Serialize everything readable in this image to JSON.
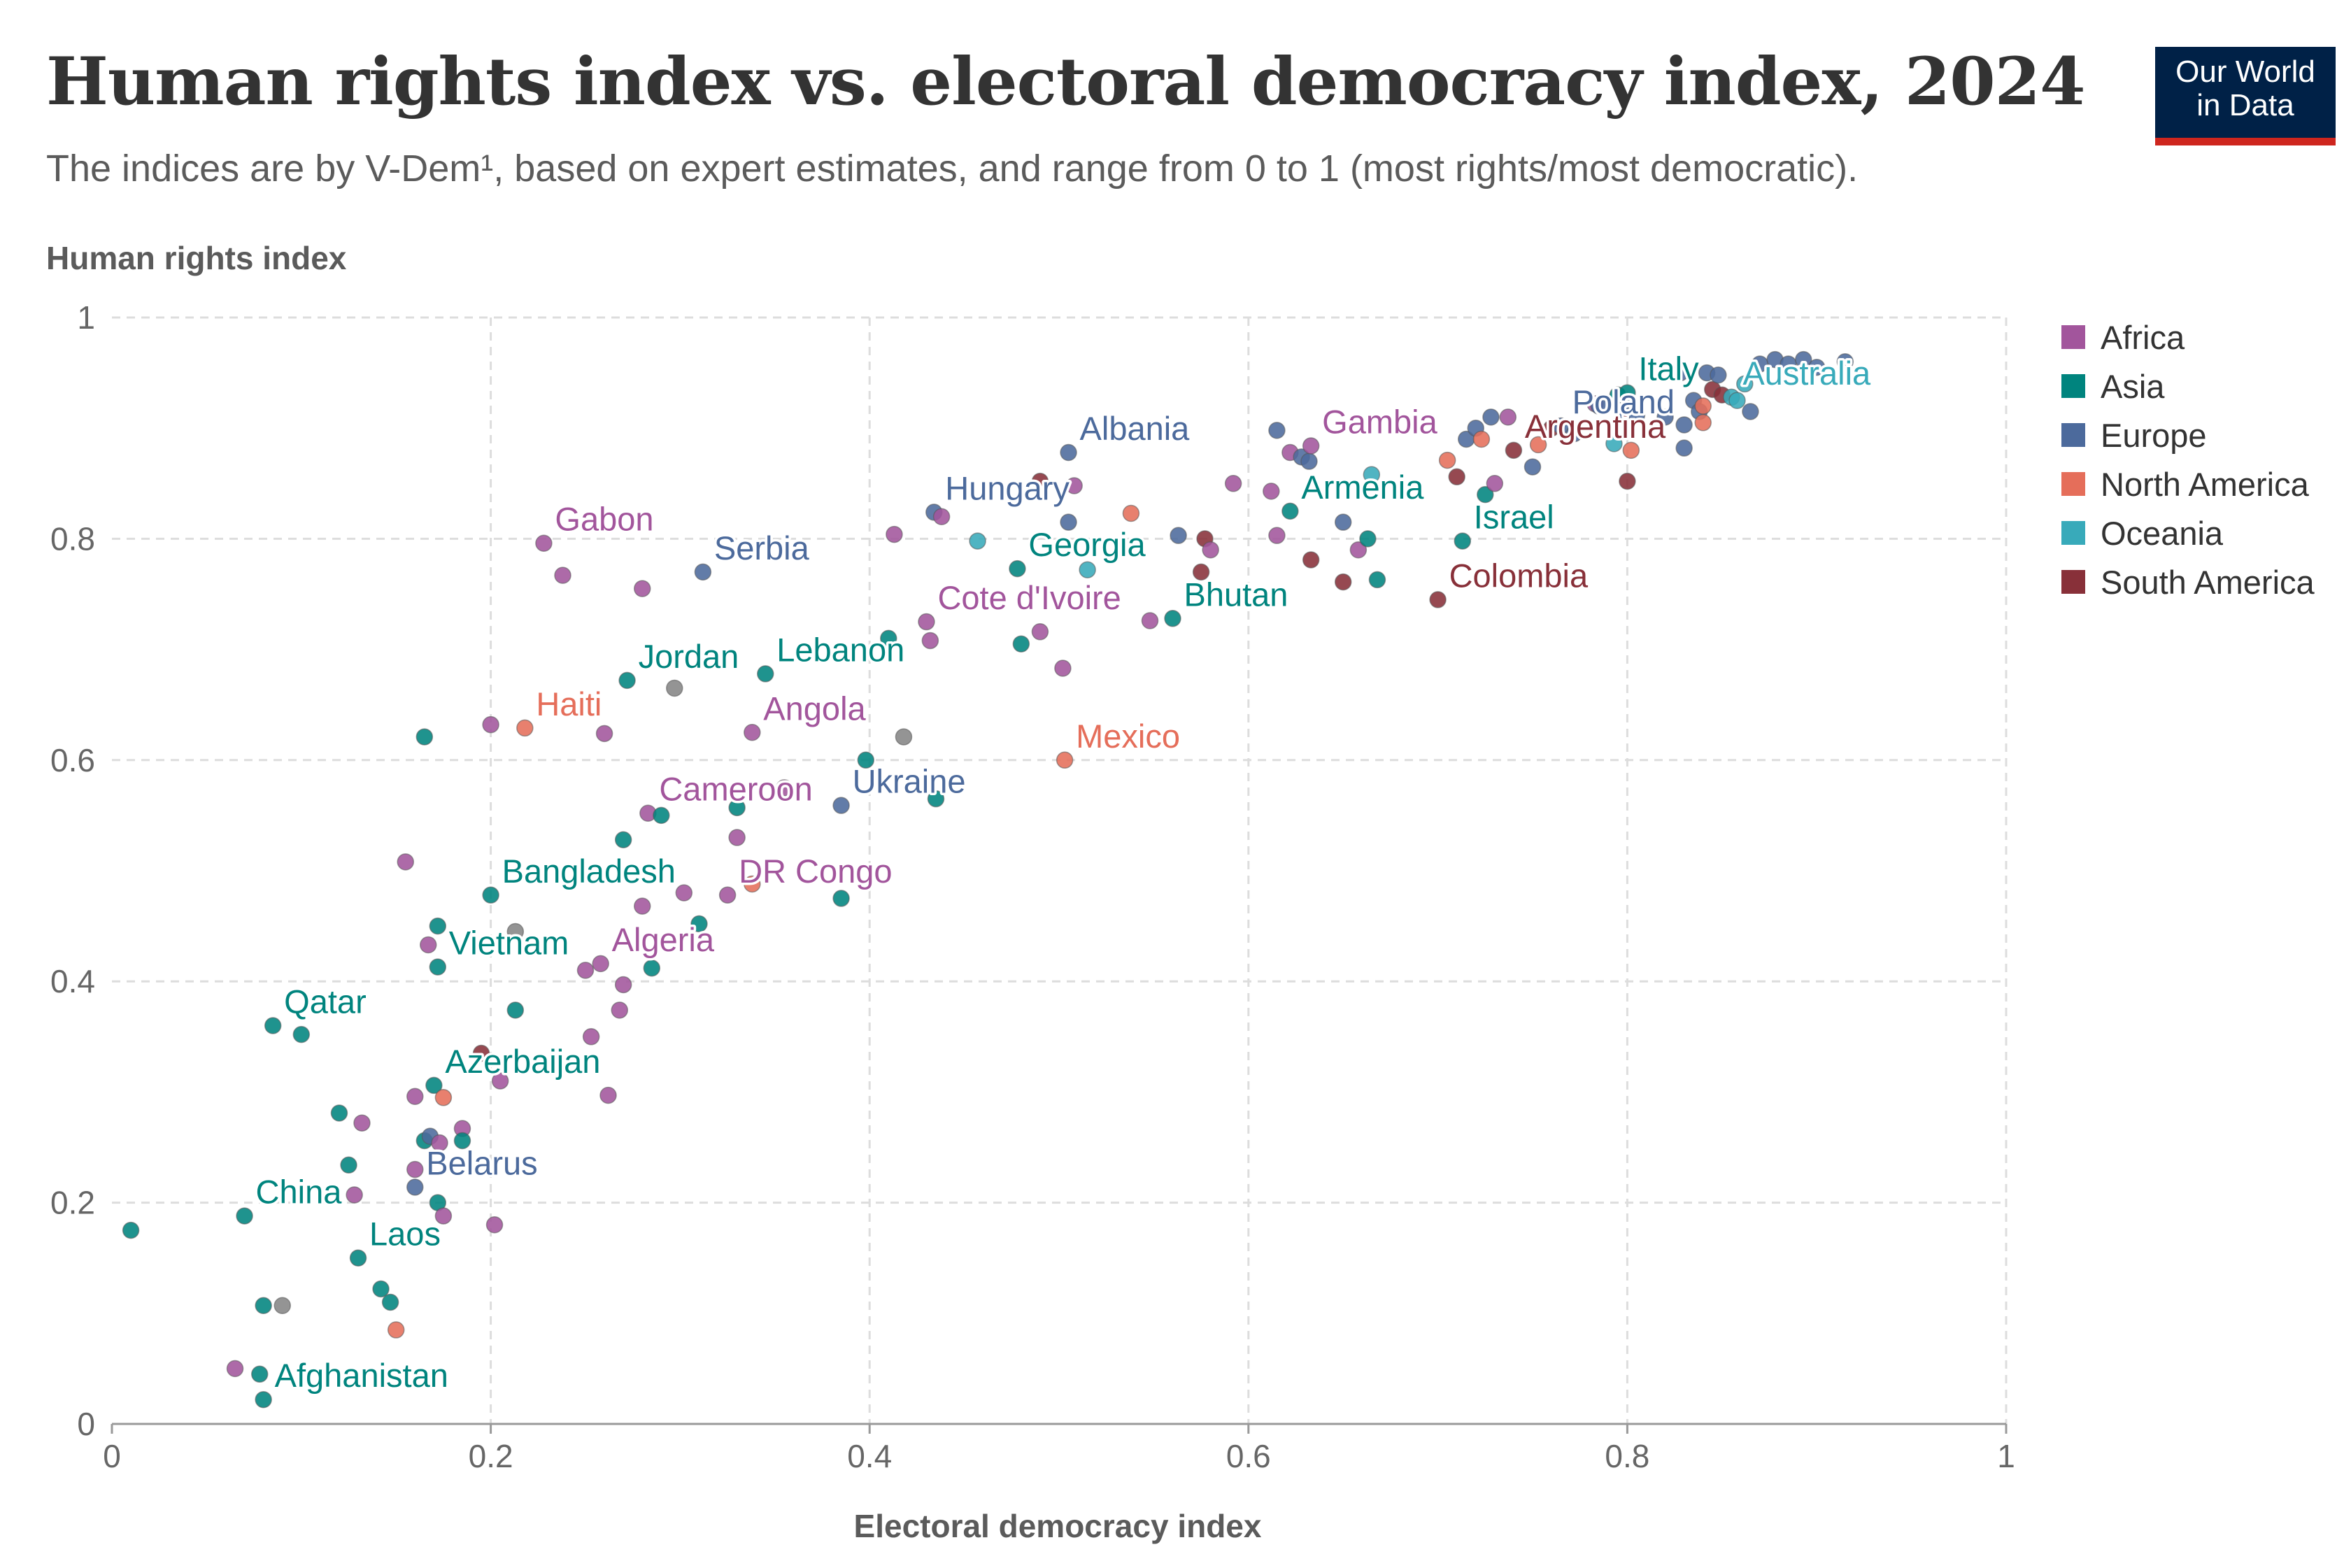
{
  "header": {
    "title": "Human rights index vs. electoral democracy index, 2024",
    "subtitle": "The indices are by V-Dem¹, based on expert estimates, and range from 0 to 1 (most rights/most democratic).",
    "logo_line1": "Our World",
    "logo_line2": "in Data"
  },
  "colors": {
    "Africa": "#a2559c",
    "Asia": "#00847e",
    "Europe": "#4c6a9c",
    "North America": "#e56e5a",
    "Oceania": "#38aaba",
    "South America": "#883039",
    "Other": "#858585"
  },
  "chart_data": {
    "type": "scatter",
    "title": "Human rights index vs. electoral democracy index, 2024",
    "xlabel": "Electoral democracy index",
    "ylabel": "Human rights index",
    "xlim": [
      0,
      1
    ],
    "ylim": [
      0,
      1
    ],
    "x_ticks": [
      "0",
      "0.2",
      "0.4",
      "0.6",
      "0.8",
      "1"
    ],
    "y_ticks": [
      "0",
      "0.2",
      "0.4",
      "0.6",
      "0.8",
      "1"
    ],
    "grid": true,
    "legend_position": "right",
    "legend": [
      "Africa",
      "Asia",
      "Europe",
      "North America",
      "Oceania",
      "South America"
    ],
    "points": [
      {
        "x": 0.01,
        "y": 0.175,
        "region": "Asia"
      },
      {
        "x": 0.065,
        "y": 0.05,
        "region": "Africa"
      },
      {
        "x": 0.07,
        "y": 0.188,
        "region": "Asia",
        "label": "China"
      },
      {
        "x": 0.078,
        "y": 0.045,
        "region": "Asia"
      },
      {
        "x": 0.08,
        "y": 0.022,
        "region": "Asia",
        "label": "Afghanistan"
      },
      {
        "x": 0.08,
        "y": 0.107,
        "region": "Asia"
      },
      {
        "x": 0.085,
        "y": 0.36,
        "region": "Asia",
        "label": "Qatar"
      },
      {
        "x": 0.09,
        "y": 0.107,
        "region": "Other"
      },
      {
        "x": 0.1,
        "y": 0.352,
        "region": "Asia"
      },
      {
        "x": 0.12,
        "y": 0.281,
        "region": "Asia"
      },
      {
        "x": 0.125,
        "y": 0.234,
        "region": "Asia"
      },
      {
        "x": 0.128,
        "y": 0.207,
        "region": "Africa"
      },
      {
        "x": 0.13,
        "y": 0.15,
        "region": "Asia",
        "label": "Laos"
      },
      {
        "x": 0.132,
        "y": 0.272,
        "region": "Africa"
      },
      {
        "x": 0.142,
        "y": 0.122,
        "region": "Asia"
      },
      {
        "x": 0.147,
        "y": 0.11,
        "region": "Asia"
      },
      {
        "x": 0.15,
        "y": 0.085,
        "region": "North America"
      },
      {
        "x": 0.155,
        "y": 0.508,
        "region": "Africa"
      },
      {
        "x": 0.16,
        "y": 0.296,
        "region": "Africa"
      },
      {
        "x": 0.16,
        "y": 0.23,
        "region": "Africa"
      },
      {
        "x": 0.16,
        "y": 0.214,
        "region": "Europe",
        "label": "Belarus"
      },
      {
        "x": 0.165,
        "y": 0.621,
        "region": "Asia"
      },
      {
        "x": 0.165,
        "y": 0.256,
        "region": "Asia"
      },
      {
        "x": 0.167,
        "y": 0.433,
        "region": "Africa"
      },
      {
        "x": 0.168,
        "y": 0.26,
        "region": "Europe"
      },
      {
        "x": 0.17,
        "y": 0.306,
        "region": "Asia",
        "label": "Azerbaijan"
      },
      {
        "x": 0.172,
        "y": 0.45,
        "region": "Asia"
      },
      {
        "x": 0.172,
        "y": 0.413,
        "region": "Asia",
        "label": "Vietnam"
      },
      {
        "x": 0.172,
        "y": 0.2,
        "region": "Asia"
      },
      {
        "x": 0.173,
        "y": 0.254,
        "region": "Africa"
      },
      {
        "x": 0.175,
        "y": 0.188,
        "region": "Africa"
      },
      {
        "x": 0.175,
        "y": 0.295,
        "region": "North America"
      },
      {
        "x": 0.185,
        "y": 0.267,
        "region": "Africa"
      },
      {
        "x": 0.185,
        "y": 0.256,
        "region": "Asia"
      },
      {
        "x": 0.195,
        "y": 0.335,
        "region": "South America"
      },
      {
        "x": 0.2,
        "y": 0.632,
        "region": "Africa"
      },
      {
        "x": 0.2,
        "y": 0.478,
        "region": "Asia",
        "label": "Bangladesh"
      },
      {
        "x": 0.202,
        "y": 0.18,
        "region": "Africa"
      },
      {
        "x": 0.205,
        "y": 0.31,
        "region": "Africa"
      },
      {
        "x": 0.213,
        "y": 0.445,
        "region": "Other"
      },
      {
        "x": 0.213,
        "y": 0.374,
        "region": "Asia"
      },
      {
        "x": 0.218,
        "y": 0.629,
        "region": "North America",
        "label": "Haiti"
      },
      {
        "x": 0.228,
        "y": 0.796,
        "region": "Africa",
        "label": "Gabon"
      },
      {
        "x": 0.238,
        "y": 0.767,
        "region": "Africa"
      },
      {
        "x": 0.25,
        "y": 0.41,
        "region": "Africa"
      },
      {
        "x": 0.253,
        "y": 0.35,
        "region": "Africa"
      },
      {
        "x": 0.258,
        "y": 0.416,
        "region": "Africa",
        "label": "Algeria"
      },
      {
        "x": 0.26,
        "y": 0.624,
        "region": "Africa"
      },
      {
        "x": 0.262,
        "y": 0.297,
        "region": "Africa"
      },
      {
        "x": 0.268,
        "y": 0.374,
        "region": "Africa"
      },
      {
        "x": 0.27,
        "y": 0.528,
        "region": "Asia"
      },
      {
        "x": 0.27,
        "y": 0.397,
        "region": "Africa"
      },
      {
        "x": 0.272,
        "y": 0.672,
        "region": "Asia",
        "label": "Jordan"
      },
      {
        "x": 0.28,
        "y": 0.755,
        "region": "Africa"
      },
      {
        "x": 0.28,
        "y": 0.468,
        "region": "Africa"
      },
      {
        "x": 0.283,
        "y": 0.552,
        "region": "Africa",
        "label": "Cameroon"
      },
      {
        "x": 0.285,
        "y": 0.412,
        "region": "Asia"
      },
      {
        "x": 0.29,
        "y": 0.55,
        "region": "Asia"
      },
      {
        "x": 0.297,
        "y": 0.665,
        "region": "Other"
      },
      {
        "x": 0.302,
        "y": 0.48,
        "region": "Africa"
      },
      {
        "x": 0.31,
        "y": 0.452,
        "region": "Asia"
      },
      {
        "x": 0.312,
        "y": 0.77,
        "region": "Europe",
        "label": "Serbia"
      },
      {
        "x": 0.325,
        "y": 0.478,
        "region": "Africa",
        "label": "DR Congo"
      },
      {
        "x": 0.33,
        "y": 0.53,
        "region": "Africa"
      },
      {
        "x": 0.33,
        "y": 0.557,
        "region": "Asia"
      },
      {
        "x": 0.338,
        "y": 0.625,
        "region": "Africa",
        "label": "Angola"
      },
      {
        "x": 0.338,
        "y": 0.488,
        "region": "North America"
      },
      {
        "x": 0.345,
        "y": 0.678,
        "region": "Asia",
        "label": "Lebanon"
      },
      {
        "x": 0.355,
        "y": 0.575,
        "region": "Africa"
      },
      {
        "x": 0.385,
        "y": 0.475,
        "region": "Asia"
      },
      {
        "x": 0.385,
        "y": 0.559,
        "region": "Europe",
        "label": "Ukraine"
      },
      {
        "x": 0.398,
        "y": 0.6,
        "region": "Asia"
      },
      {
        "x": 0.41,
        "y": 0.71,
        "region": "Asia"
      },
      {
        "x": 0.413,
        "y": 0.804,
        "region": "Africa"
      },
      {
        "x": 0.418,
        "y": 0.621,
        "region": "Other"
      },
      {
        "x": 0.43,
        "y": 0.725,
        "region": "Africa",
        "label": "Cote d'Ivoire"
      },
      {
        "x": 0.432,
        "y": 0.708,
        "region": "Africa"
      },
      {
        "x": 0.434,
        "y": 0.824,
        "region": "Europe",
        "label": "Hungary"
      },
      {
        "x": 0.435,
        "y": 0.565,
        "region": "Asia"
      },
      {
        "x": 0.438,
        "y": 0.82,
        "region": "Africa"
      },
      {
        "x": 0.457,
        "y": 0.798,
        "region": "Oceania"
      },
      {
        "x": 0.478,
        "y": 0.773,
        "region": "Asia",
        "label": "Georgia"
      },
      {
        "x": 0.48,
        "y": 0.705,
        "region": "Asia"
      },
      {
        "x": 0.49,
        "y": 0.852,
        "region": "South America"
      },
      {
        "x": 0.49,
        "y": 0.716,
        "region": "Africa"
      },
      {
        "x": 0.502,
        "y": 0.683,
        "region": "Africa"
      },
      {
        "x": 0.503,
        "y": 0.6,
        "region": "North America",
        "label": "Mexico"
      },
      {
        "x": 0.505,
        "y": 0.878,
        "region": "Europe",
        "label": "Albania"
      },
      {
        "x": 0.505,
        "y": 0.815,
        "region": "Europe"
      },
      {
        "x": 0.508,
        "y": 0.848,
        "region": "Africa"
      },
      {
        "x": 0.515,
        "y": 0.772,
        "region": "Oceania"
      },
      {
        "x": 0.538,
        "y": 0.823,
        "region": "North America"
      },
      {
        "x": 0.548,
        "y": 0.726,
        "region": "Africa"
      },
      {
        "x": 0.56,
        "y": 0.728,
        "region": "Asia",
        "label": "Bhutan"
      },
      {
        "x": 0.563,
        "y": 0.803,
        "region": "Europe"
      },
      {
        "x": 0.575,
        "y": 0.77,
        "region": "South America"
      },
      {
        "x": 0.577,
        "y": 0.8,
        "region": "South America"
      },
      {
        "x": 0.58,
        "y": 0.79,
        "region": "Africa"
      },
      {
        "x": 0.592,
        "y": 0.85,
        "region": "Africa"
      },
      {
        "x": 0.612,
        "y": 0.843,
        "region": "Africa"
      },
      {
        "x": 0.615,
        "y": 0.898,
        "region": "Europe"
      },
      {
        "x": 0.615,
        "y": 0.803,
        "region": "Africa"
      },
      {
        "x": 0.622,
        "y": 0.825,
        "region": "Asia",
        "label": "Armenia"
      },
      {
        "x": 0.622,
        "y": 0.878,
        "region": "Africa"
      },
      {
        "x": 0.628,
        "y": 0.874,
        "region": "Europe"
      },
      {
        "x": 0.632,
        "y": 0.87,
        "region": "Europe"
      },
      {
        "x": 0.633,
        "y": 0.884,
        "region": "Africa",
        "label": "Gambia"
      },
      {
        "x": 0.633,
        "y": 0.781,
        "region": "South America"
      },
      {
        "x": 0.65,
        "y": 0.815,
        "region": "Europe"
      },
      {
        "x": 0.65,
        "y": 0.761,
        "region": "South America"
      },
      {
        "x": 0.658,
        "y": 0.79,
        "region": "Africa"
      },
      {
        "x": 0.663,
        "y": 0.8,
        "region": "Asia"
      },
      {
        "x": 0.665,
        "y": 0.858,
        "region": "Oceania"
      },
      {
        "x": 0.668,
        "y": 0.763,
        "region": "Asia"
      },
      {
        "x": 0.7,
        "y": 0.745,
        "region": "South America",
        "label": "Colombia"
      },
      {
        "x": 0.705,
        "y": 0.871,
        "region": "North America"
      },
      {
        "x": 0.71,
        "y": 0.856,
        "region": "South America"
      },
      {
        "x": 0.713,
        "y": 0.798,
        "region": "Asia",
        "label": "Israel"
      },
      {
        "x": 0.715,
        "y": 0.89,
        "region": "Europe"
      },
      {
        "x": 0.72,
        "y": 0.9,
        "region": "Europe"
      },
      {
        "x": 0.723,
        "y": 0.89,
        "region": "North America"
      },
      {
        "x": 0.725,
        "y": 0.84,
        "region": "Asia"
      },
      {
        "x": 0.728,
        "y": 0.91,
        "region": "Europe"
      },
      {
        "x": 0.73,
        "y": 0.85,
        "region": "Africa"
      },
      {
        "x": 0.737,
        "y": 0.91,
        "region": "Africa"
      },
      {
        "x": 0.74,
        "y": 0.88,
        "region": "South America",
        "label": "Argentina"
      },
      {
        "x": 0.75,
        "y": 0.865,
        "region": "Europe"
      },
      {
        "x": 0.753,
        "y": 0.885,
        "region": "North America"
      },
      {
        "x": 0.76,
        "y": 0.9,
        "region": "South America"
      },
      {
        "x": 0.765,
        "y": 0.902,
        "region": "Europe",
        "label": "Poland"
      },
      {
        "x": 0.772,
        "y": 0.895,
        "region": "Europe"
      },
      {
        "x": 0.783,
        "y": 0.922,
        "region": "Africa"
      },
      {
        "x": 0.785,
        "y": 0.92,
        "region": "Europe"
      },
      {
        "x": 0.793,
        "y": 0.886,
        "region": "Oceania"
      },
      {
        "x": 0.795,
        "y": 0.93,
        "region": "Asia"
      },
      {
        "x": 0.797,
        "y": 0.915,
        "region": "Europe"
      },
      {
        "x": 0.8,
        "y": 0.852,
        "region": "South America"
      },
      {
        "x": 0.8,
        "y": 0.932,
        "region": "Asia",
        "label": "Italy"
      },
      {
        "x": 0.802,
        "y": 0.88,
        "region": "North America"
      },
      {
        "x": 0.805,
        "y": 0.912,
        "region": "Europe"
      },
      {
        "x": 0.82,
        "y": 0.91,
        "region": "Europe"
      },
      {
        "x": 0.828,
        "y": 0.95,
        "region": "Europe"
      },
      {
        "x": 0.83,
        "y": 0.903,
        "region": "Europe"
      },
      {
        "x": 0.83,
        "y": 0.882,
        "region": "Europe"
      },
      {
        "x": 0.835,
        "y": 0.925,
        "region": "Europe"
      },
      {
        "x": 0.838,
        "y": 0.915,
        "region": "Europe"
      },
      {
        "x": 0.84,
        "y": 0.92,
        "region": "North America"
      },
      {
        "x": 0.84,
        "y": 0.905,
        "region": "North America"
      },
      {
        "x": 0.842,
        "y": 0.95,
        "region": "Europe"
      },
      {
        "x": 0.845,
        "y": 0.935,
        "region": "South America"
      },
      {
        "x": 0.848,
        "y": 0.948,
        "region": "Europe"
      },
      {
        "x": 0.85,
        "y": 0.93,
        "region": "South America"
      },
      {
        "x": 0.855,
        "y": 0.928,
        "region": "Oceania",
        "label": "Australia"
      },
      {
        "x": 0.858,
        "y": 0.925,
        "region": "Oceania"
      },
      {
        "x": 0.862,
        "y": 0.94,
        "region": "Oceania"
      },
      {
        "x": 0.865,
        "y": 0.915,
        "region": "Europe"
      },
      {
        "x": 0.87,
        "y": 0.958,
        "region": "Europe"
      },
      {
        "x": 0.878,
        "y": 0.962,
        "region": "Europe"
      },
      {
        "x": 0.885,
        "y": 0.958,
        "region": "Europe"
      },
      {
        "x": 0.893,
        "y": 0.962,
        "region": "Europe"
      },
      {
        "x": 0.9,
        "y": 0.955,
        "region": "Europe"
      },
      {
        "x": 0.915,
        "y": 0.96,
        "region": "Europe"
      }
    ]
  }
}
